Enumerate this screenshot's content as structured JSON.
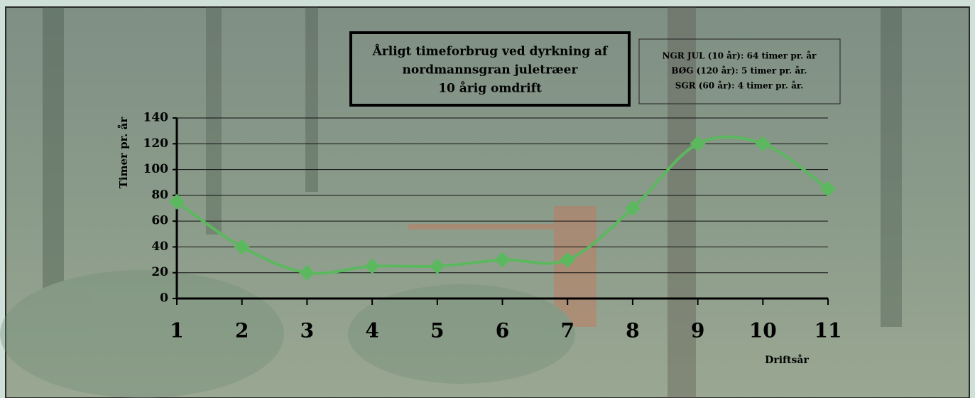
{
  "chart_data": {
    "type": "line",
    "title": [
      "Årligt timeforbrug ved dyrkning af",
      "nordmannsgran juletræer",
      "10 årig omdrift"
    ],
    "annotations": [
      "NGR JUL (10 år): 64 timer pr. år",
      "BØG (120 år): 5 timer pr. år.",
      "SGR (60 år): 4 timer pr. år."
    ],
    "x_label": "Driftsår",
    "y_label": "Timer pr. år",
    "categories": [
      "1",
      "2",
      "3",
      "4",
      "5",
      "6",
      "7",
      "8",
      "9",
      "10",
      "11"
    ],
    "series": [
      {
        "name": "Timer pr. år",
        "color": "#5cb85f",
        "values": [
          75,
          40,
          20,
          25,
          25,
          30,
          30,
          70,
          120,
          120,
          85
        ]
      }
    ],
    "ylim": [
      0,
      140
    ],
    "yticks": [
      0,
      20,
      40,
      60,
      80,
      100,
      120,
      140
    ],
    "grid": true,
    "smooth": true
  }
}
